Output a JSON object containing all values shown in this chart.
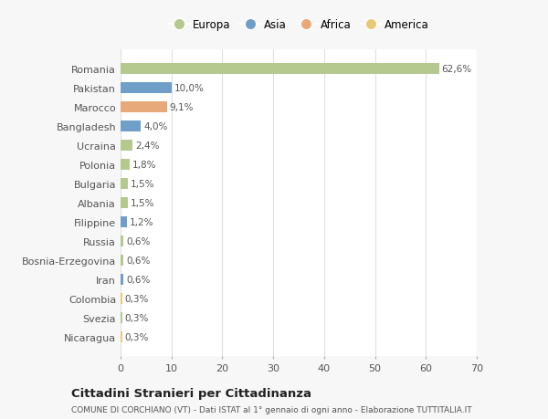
{
  "categories": [
    "Romania",
    "Pakistan",
    "Marocco",
    "Bangladesh",
    "Ucraina",
    "Polonia",
    "Bulgaria",
    "Albania",
    "Filippine",
    "Russia",
    "Bosnia-Erzegovina",
    "Iran",
    "Colombia",
    "Svezia",
    "Nicaragua"
  ],
  "values": [
    62.6,
    10.0,
    9.1,
    4.0,
    2.4,
    1.8,
    1.5,
    1.5,
    1.2,
    0.6,
    0.6,
    0.6,
    0.3,
    0.3,
    0.3
  ],
  "labels": [
    "62,6%",
    "10,0%",
    "9,1%",
    "4,0%",
    "2,4%",
    "1,8%",
    "1,5%",
    "1,5%",
    "1,2%",
    "0,6%",
    "0,6%",
    "0,6%",
    "0,3%",
    "0,3%",
    "0,3%"
  ],
  "colors": [
    "#b5c98e",
    "#6f9fc8",
    "#e8a97a",
    "#6f9fc8",
    "#b5c98e",
    "#b5c98e",
    "#b5c98e",
    "#b5c98e",
    "#6f9fc8",
    "#b5c98e",
    "#b5c98e",
    "#6f9fc8",
    "#e8c97a",
    "#b5c98e",
    "#e8c97a"
  ],
  "legend_labels": [
    "Europa",
    "Asia",
    "Africa",
    "America"
  ],
  "legend_colors": [
    "#b5c98e",
    "#6f9fc8",
    "#e8a97a",
    "#e8c97a"
  ],
  "title": "Cittadini Stranieri per Cittadinanza",
  "subtitle": "COMUNE DI CORCHIANO (VT) - Dati ISTAT al 1° gennaio di ogni anno - Elaborazione TUTTITALIA.IT",
  "xlim": [
    0,
    70
  ],
  "xticks": [
    0,
    10,
    20,
    30,
    40,
    50,
    60,
    70
  ],
  "background_color": "#f7f7f7",
  "bar_bg_color": "#ffffff",
  "grid_color": "#e0e0e0"
}
